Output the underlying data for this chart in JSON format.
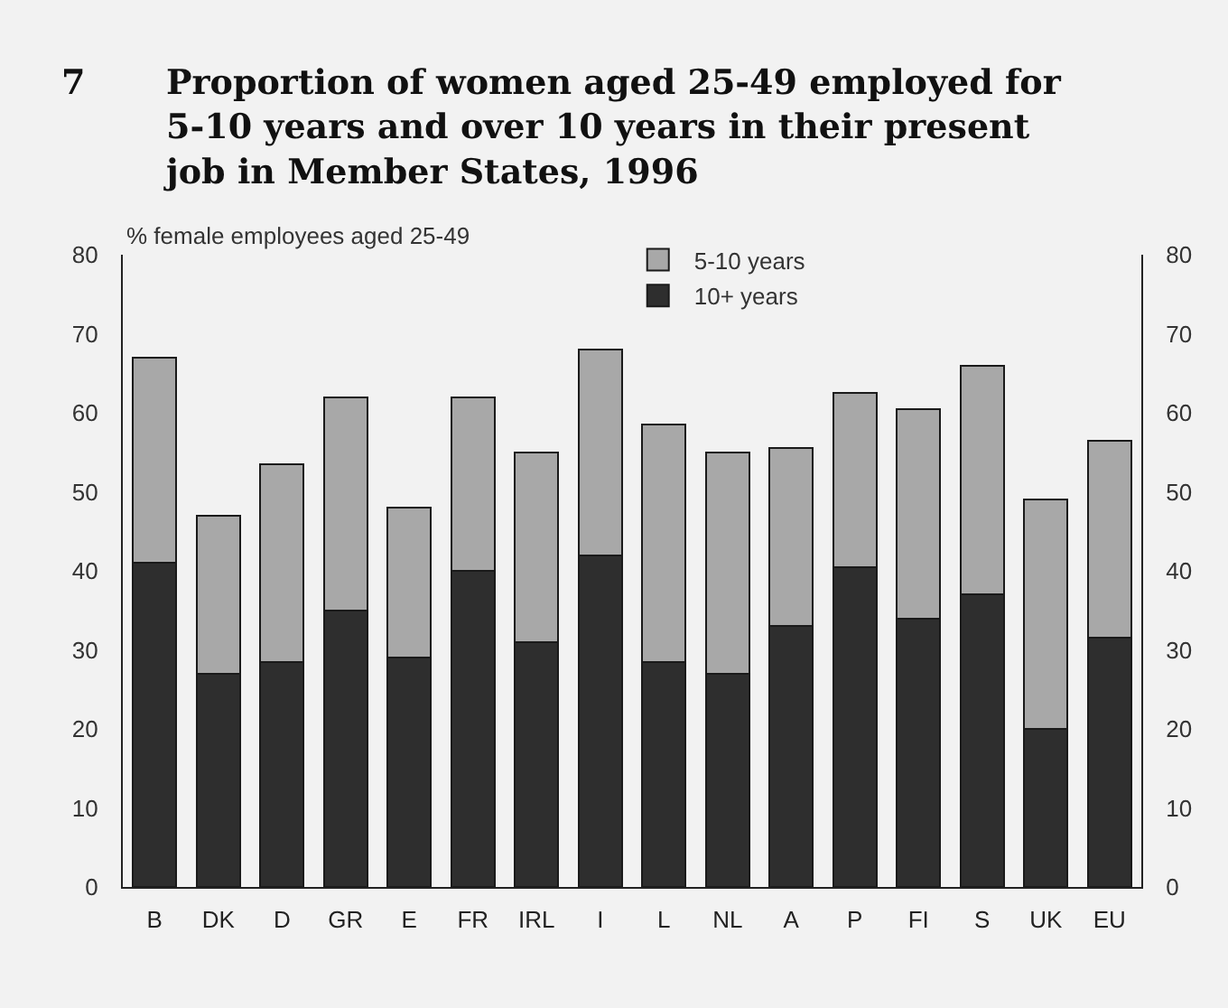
{
  "chart_data": {
    "type": "bar",
    "stacked": true,
    "title": "Proportion of women aged 25-49 employed for\n5-10 years and over 10 years in their present\njob in Member States, 1996",
    "ylabel": "% female employees aged 25-49",
    "annotations": [
      "7"
    ],
    "categories": [
      "B",
      "DK",
      "D",
      "GR",
      "E",
      "FR",
      "IRL",
      "I",
      "L",
      "NL",
      "A",
      "P",
      "FI",
      "S",
      "UK",
      "EU"
    ],
    "series": [
      {
        "name": "10+ years",
        "color": "#2e2e2e",
        "values": [
          41,
          27,
          28.5,
          35,
          29,
          40,
          31,
          42,
          28.5,
          27,
          33,
          40.5,
          34,
          37,
          20,
          31.5
        ]
      },
      {
        "name": "5-10 years",
        "color": "#a8a8a8",
        "values": [
          26,
          20,
          25,
          27,
          19,
          22,
          24,
          26,
          30,
          28,
          22.5,
          22,
          26.5,
          29,
          29,
          25
        ]
      }
    ],
    "ylim": [
      0,
      80
    ],
    "yticks": [
      0,
      10,
      20,
      30,
      40,
      50,
      60,
      70,
      80
    ],
    "y2lim": [
      0,
      80
    ],
    "y2ticks": [
      0,
      10,
      20,
      30,
      40,
      50,
      60,
      70,
      80
    ],
    "legend": "top",
    "grid": false
  }
}
